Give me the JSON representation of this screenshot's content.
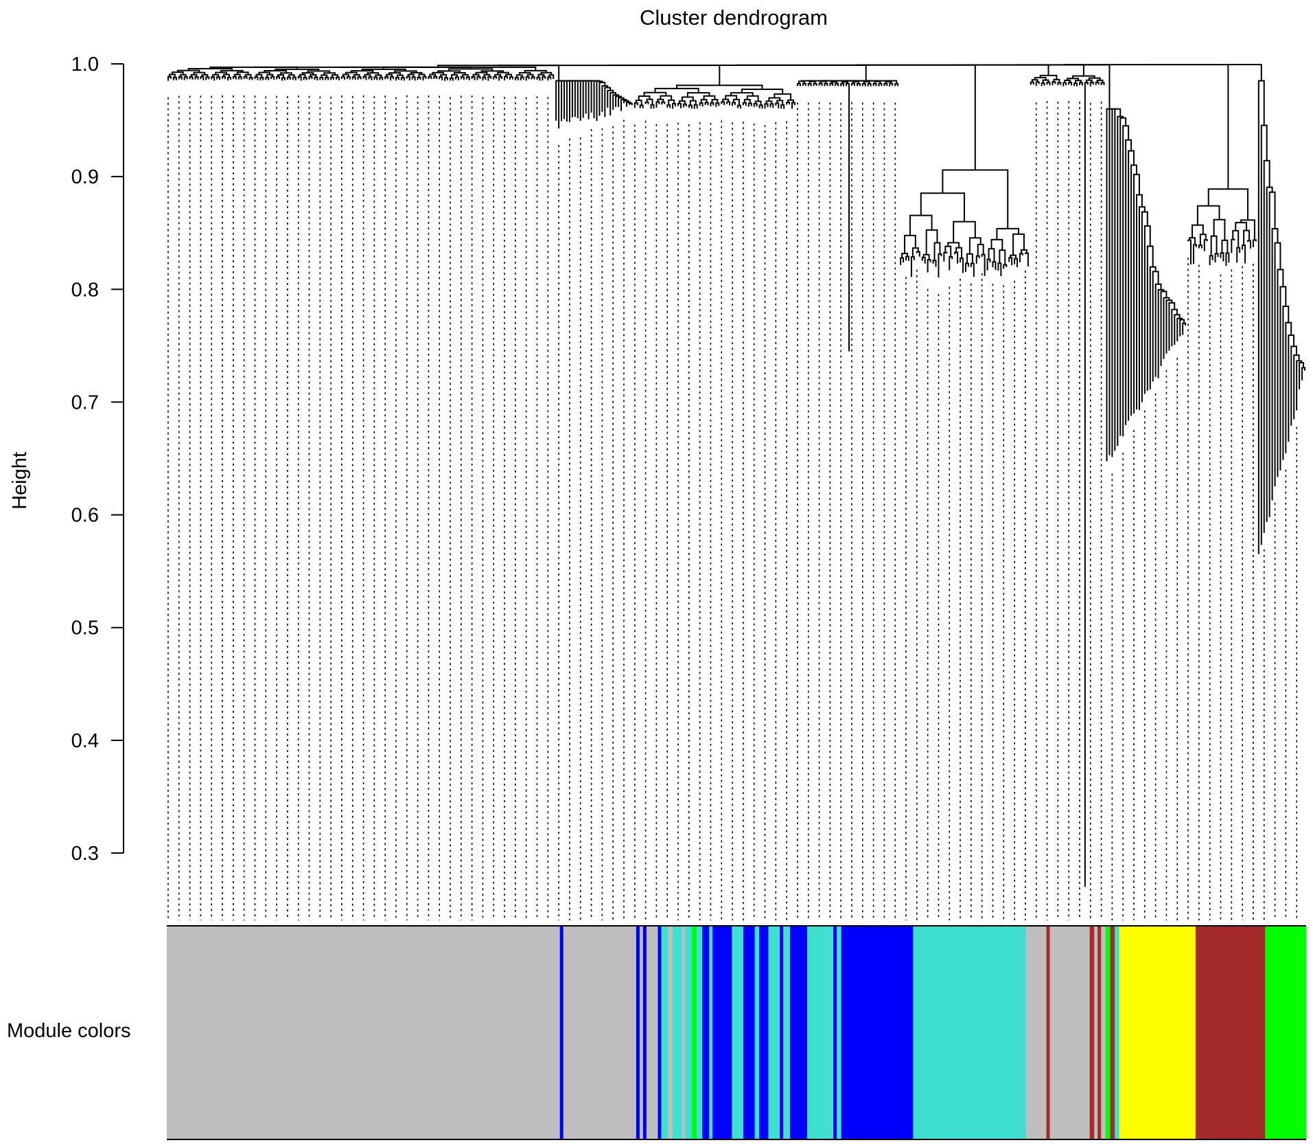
{
  "chart_data": {
    "type": "dendrogram",
    "title": "Cluster dendrogram",
    "ylabel": "Height",
    "ylim": [
      0.3,
      1.0
    ],
    "yticks": [
      "1.0",
      "0.9",
      "0.8",
      "0.7",
      "0.6",
      "0.5",
      "0.4",
      "0.3"
    ],
    "color_bar_label": "Module colors",
    "module_colors": {
      "grey": "#bebebe",
      "blue": "#0000ff",
      "turquoise": "#40e0d0",
      "green": "#00ff00",
      "yellow": "#ffff00",
      "brown": "#a52a2a"
    },
    "module_segments": [
      {
        "start": 0.0,
        "end": 0.345,
        "color": "grey"
      },
      {
        "start": 0.345,
        "end": 0.348,
        "color": "blue"
      },
      {
        "start": 0.348,
        "end": 0.412,
        "color": "grey"
      },
      {
        "start": 0.412,
        "end": 0.415,
        "color": "blue"
      },
      {
        "start": 0.415,
        "end": 0.418,
        "color": "grey"
      },
      {
        "start": 0.418,
        "end": 0.421,
        "color": "blue"
      },
      {
        "start": 0.421,
        "end": 0.431,
        "color": "grey"
      },
      {
        "start": 0.431,
        "end": 0.434,
        "color": "blue"
      },
      {
        "start": 0.434,
        "end": 0.44,
        "color": "turquoise"
      },
      {
        "start": 0.44,
        "end": 0.444,
        "color": "grey"
      },
      {
        "start": 0.444,
        "end": 0.452,
        "color": "turquoise"
      },
      {
        "start": 0.452,
        "end": 0.455,
        "color": "grey"
      },
      {
        "start": 0.455,
        "end": 0.461,
        "color": "turquoise"
      },
      {
        "start": 0.461,
        "end": 0.465,
        "color": "green"
      },
      {
        "start": 0.465,
        "end": 0.47,
        "color": "turquoise"
      },
      {
        "start": 0.47,
        "end": 0.476,
        "color": "blue"
      },
      {
        "start": 0.476,
        "end": 0.479,
        "color": "turquoise"
      },
      {
        "start": 0.479,
        "end": 0.496,
        "color": "blue"
      },
      {
        "start": 0.496,
        "end": 0.506,
        "color": "turquoise"
      },
      {
        "start": 0.506,
        "end": 0.516,
        "color": "blue"
      },
      {
        "start": 0.516,
        "end": 0.52,
        "color": "turquoise"
      },
      {
        "start": 0.52,
        "end": 0.528,
        "color": "blue"
      },
      {
        "start": 0.528,
        "end": 0.538,
        "color": "turquoise"
      },
      {
        "start": 0.538,
        "end": 0.541,
        "color": "blue"
      },
      {
        "start": 0.541,
        "end": 0.547,
        "color": "turquoise"
      },
      {
        "start": 0.547,
        "end": 0.562,
        "color": "blue"
      },
      {
        "start": 0.562,
        "end": 0.585,
        "color": "turquoise"
      },
      {
        "start": 0.585,
        "end": 0.588,
        "color": "blue"
      },
      {
        "start": 0.588,
        "end": 0.592,
        "color": "turquoise"
      },
      {
        "start": 0.592,
        "end": 0.596,
        "color": "blue"
      },
      {
        "start": 0.596,
        "end": 0.655,
        "color": "blue"
      },
      {
        "start": 0.655,
        "end": 0.754,
        "color": "turquoise"
      },
      {
        "start": 0.754,
        "end": 0.772,
        "color": "grey"
      },
      {
        "start": 0.772,
        "end": 0.775,
        "color": "brown"
      },
      {
        "start": 0.775,
        "end": 0.81,
        "color": "grey"
      },
      {
        "start": 0.81,
        "end": 0.814,
        "color": "brown"
      },
      {
        "start": 0.814,
        "end": 0.817,
        "color": "grey"
      },
      {
        "start": 0.817,
        "end": 0.82,
        "color": "brown"
      },
      {
        "start": 0.82,
        "end": 0.824,
        "color": "grey"
      },
      {
        "start": 0.824,
        "end": 0.828,
        "color": "green"
      },
      {
        "start": 0.828,
        "end": 0.832,
        "color": "brown"
      },
      {
        "start": 0.832,
        "end": 0.836,
        "color": "turquoise"
      },
      {
        "start": 0.836,
        "end": 0.84,
        "color": "yellow"
      },
      {
        "start": 0.84,
        "end": 0.903,
        "color": "yellow"
      },
      {
        "start": 0.903,
        "end": 0.964,
        "color": "brown"
      },
      {
        "start": 0.964,
        "end": 1.0,
        "color": "green"
      }
    ]
  }
}
